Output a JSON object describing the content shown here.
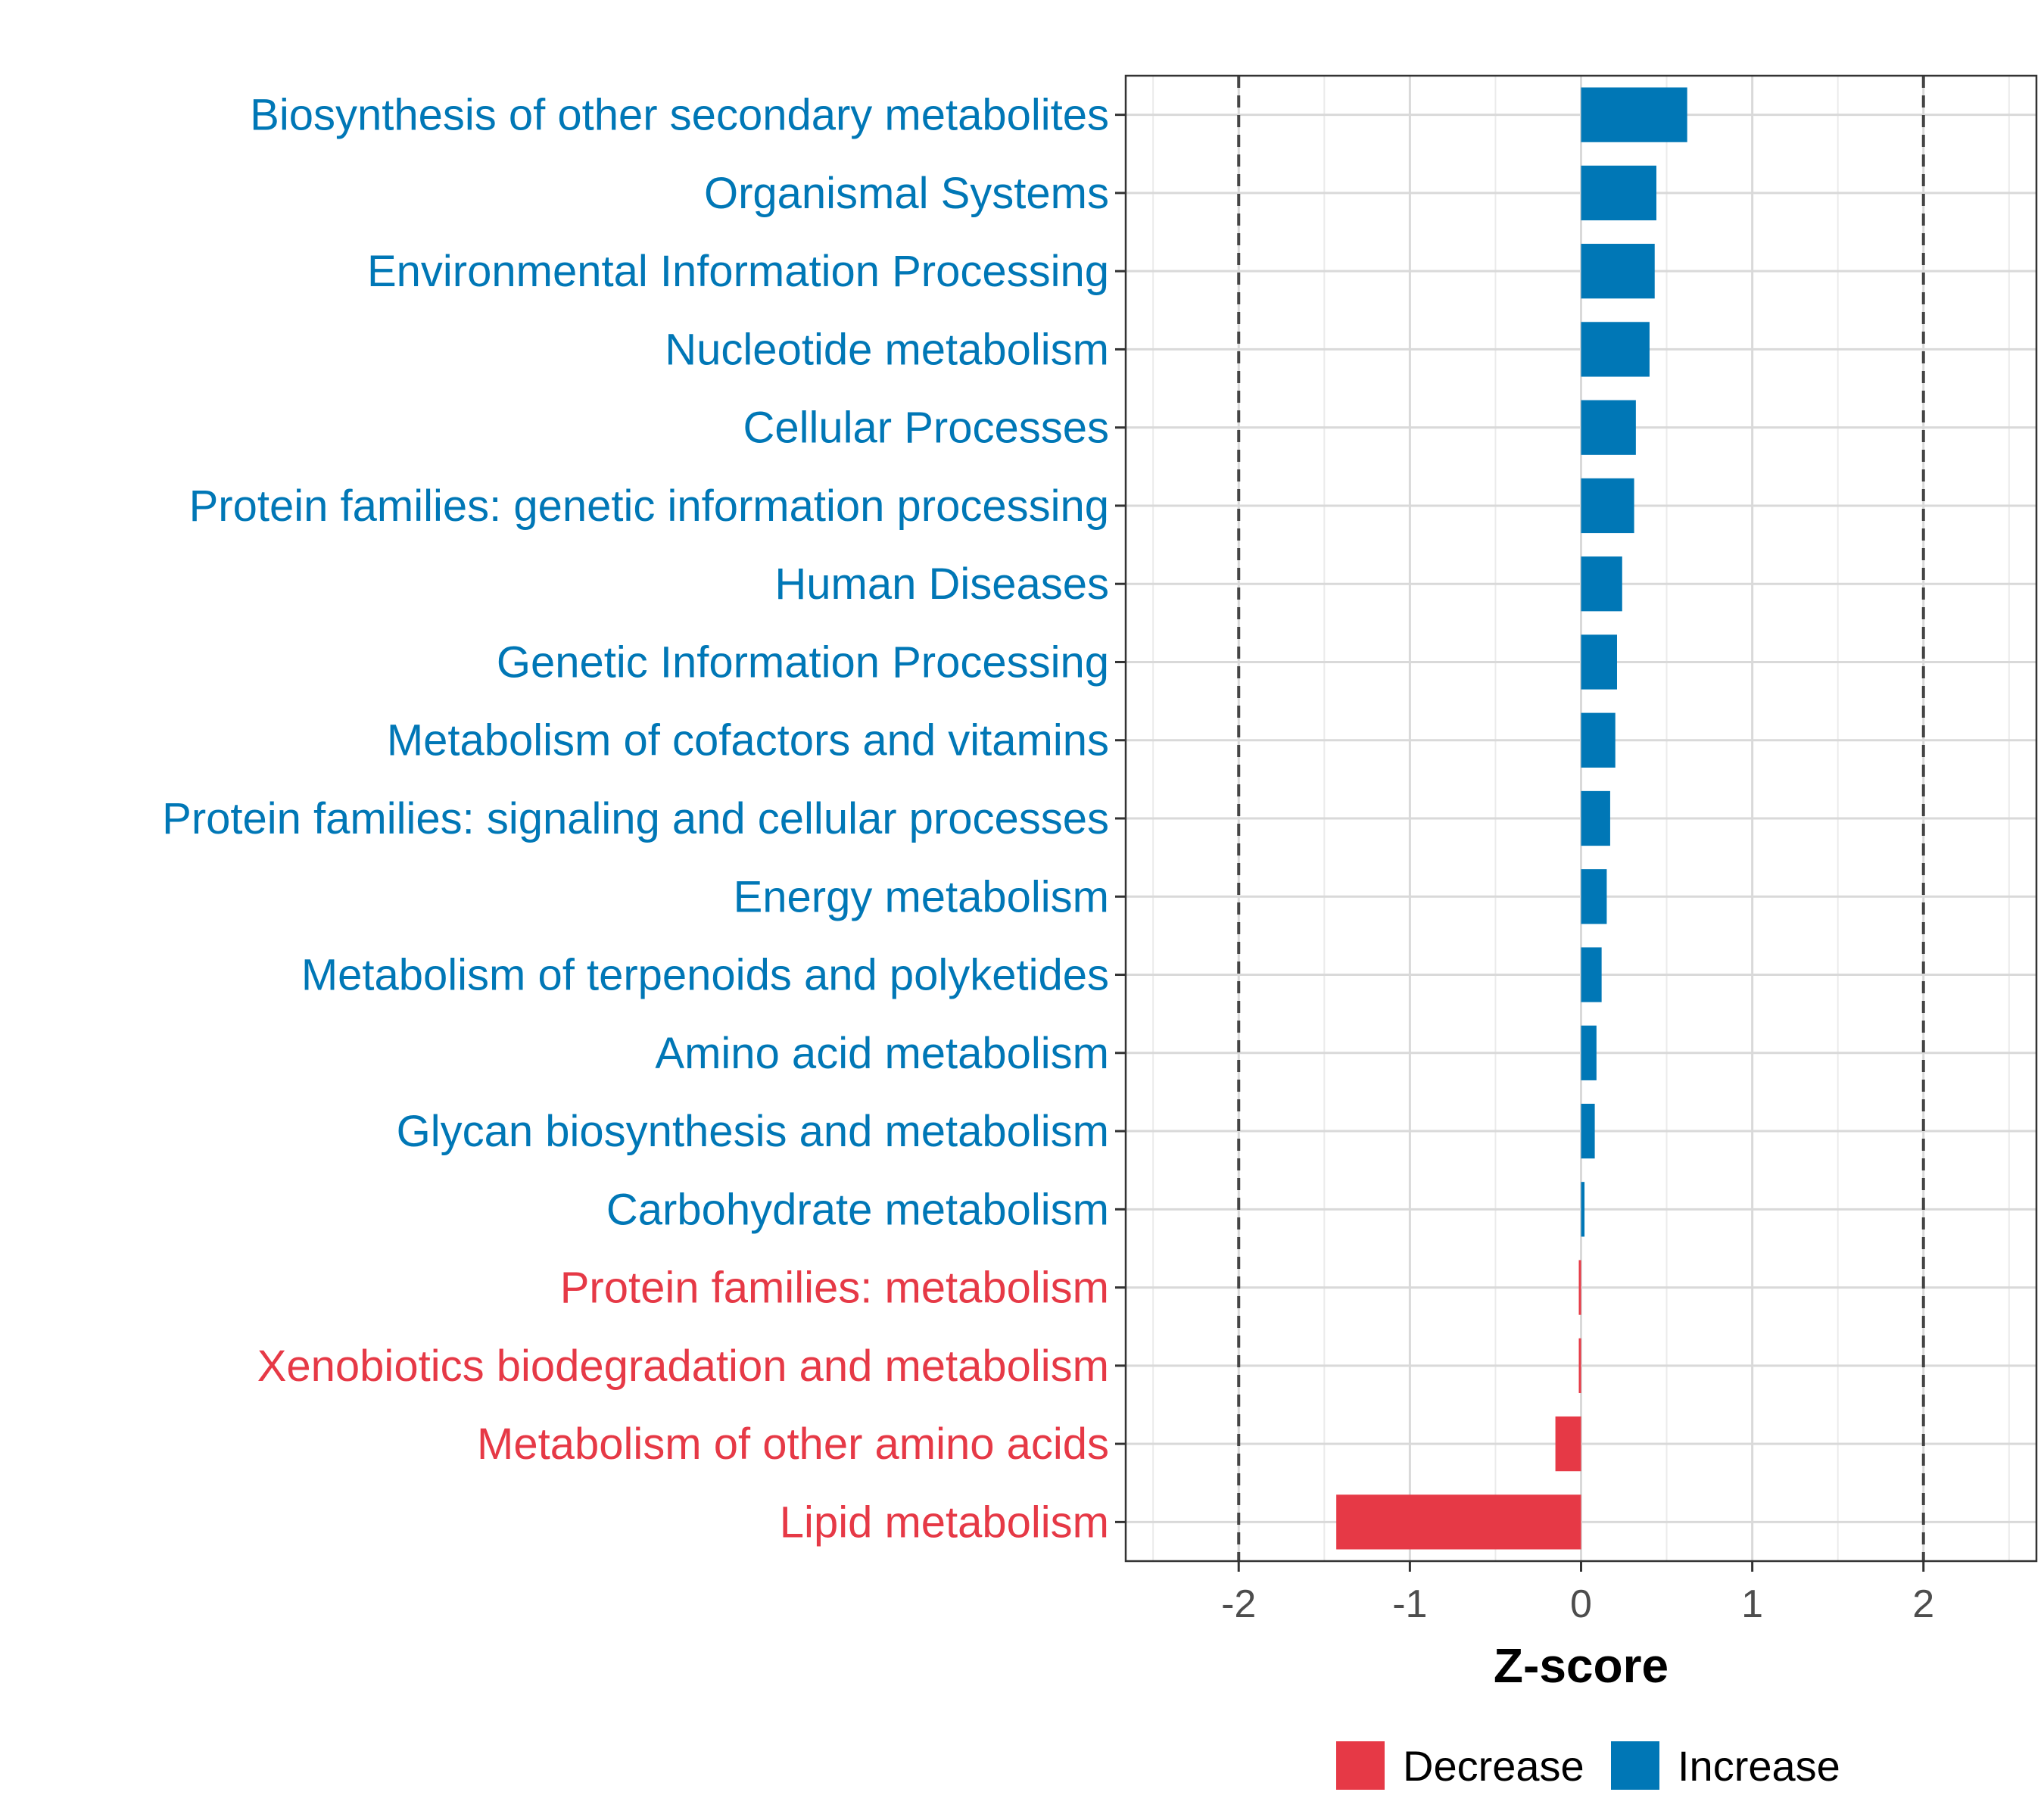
{
  "chart_data": {
    "type": "bar",
    "orientation": "horizontal",
    "title": "",
    "xlabel": "Z-score",
    "ylabel": "",
    "xlim": [
      -2.66,
      2.66
    ],
    "xticks": [
      -2,
      -1,
      0,
      1,
      2
    ],
    "xtick_labels": [
      "-2",
      "-1",
      "0",
      "1",
      "2"
    ],
    "reference_lines": [
      -2,
      2
    ],
    "grid": true,
    "colors": {
      "Decrease": "#E63946",
      "Increase": "#0077B6"
    },
    "legend": {
      "position": "bottom",
      "entries": [
        "Decrease",
        "Increase"
      ]
    },
    "categories": [
      "Biosynthesis of other secondary metabolites",
      "Organismal Systems",
      "Environmental Information Processing",
      "Nucleotide metabolism",
      "Cellular Processes",
      "Protein families: genetic information processing",
      "Human Diseases",
      "Genetic Information Processing",
      "Metabolism of cofactors and vitamins",
      "Protein families: signaling and cellular processes",
      "Energy metabolism",
      "Metabolism of terpenoids and polyketides",
      "Amino acid metabolism",
      "Glycan biosynthesis and metabolism",
      "Carbohydrate metabolism",
      "Protein families: metabolism",
      "Xenobiotics biodegradation and metabolism",
      "Metabolism of other amino acids",
      "Lipid metabolism"
    ],
    "values": [
      0.62,
      0.44,
      0.43,
      0.4,
      0.32,
      0.31,
      0.24,
      0.21,
      0.2,
      0.17,
      0.15,
      0.12,
      0.09,
      0.08,
      0.02,
      -0.01,
      -0.01,
      -0.15,
      -1.43
    ],
    "groups": [
      "Increase",
      "Increase",
      "Increase",
      "Increase",
      "Increase",
      "Increase",
      "Increase",
      "Increase",
      "Increase",
      "Increase",
      "Increase",
      "Increase",
      "Increase",
      "Increase",
      "Increase",
      "Decrease",
      "Decrease",
      "Decrease",
      "Decrease"
    ]
  }
}
